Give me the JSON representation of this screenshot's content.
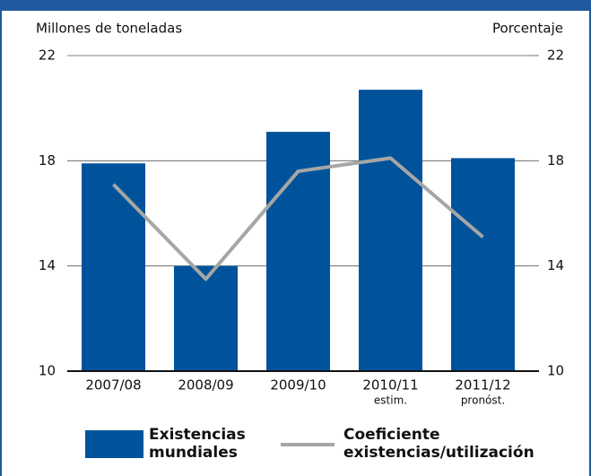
{
  "chart_data": {
    "type": "bar_line",
    "y_label": "Millones de toneladas",
    "y2_label": "Porcentaje",
    "categories": [
      "2007/08",
      "2008/09",
      "2009/10",
      "2010/11",
      "2011/12"
    ],
    "category_notes": [
      null,
      null,
      null,
      "estim.",
      "pronóst."
    ],
    "series": [
      {
        "name": "Existencias mundiales",
        "color": "#00539b",
        "type": "bar",
        "values": [
          17.9,
          14.0,
          19.1,
          20.7,
          18.1
        ]
      },
      {
        "name": "Coeficiente existencias/utilización",
        "color": "#a6a6a6",
        "type": "line",
        "axis": "y2",
        "values": [
          17.1,
          13.5,
          17.6,
          18.1,
          15.1
        ]
      }
    ],
    "ylim": [
      10,
      22
    ],
    "yticks": [
      10,
      14,
      18,
      22
    ],
    "y2lim": [
      10,
      22
    ],
    "y2ticks": [
      10,
      14,
      18,
      22
    ],
    "grid": true
  }
}
